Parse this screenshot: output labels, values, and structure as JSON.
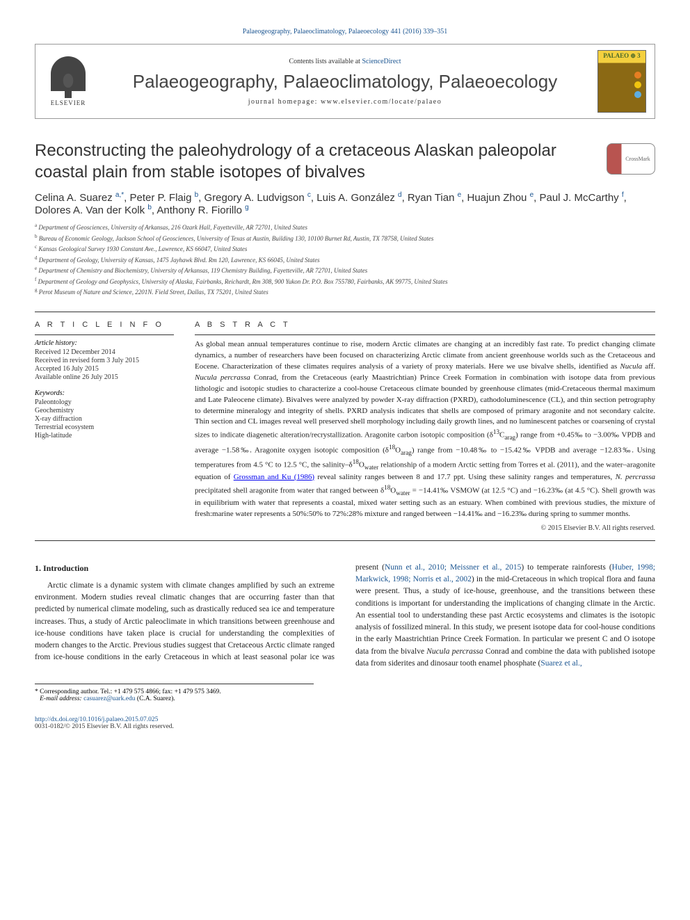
{
  "running_head": "Palaeogeography, Palaeoclimatology, Palaeoecology 441 (2016) 339–351",
  "header": {
    "publisher": "ELSEVIER",
    "contents_prefix": "Contents lists available at ",
    "contents_link": "ScienceDirect",
    "journal_title": "Palaeogeography, Palaeoclimatology, Palaeoecology",
    "homepage_label": "journal homepage: ",
    "homepage_url": "www.elsevier.com/locate/palaeo",
    "badge_text": "PALAEO ⊕ 3"
  },
  "crossmark": "CrossMark",
  "title": "Reconstructing the paleohydrology of a cretaceous Alaskan paleopolar coastal plain from stable isotopes of bivalves",
  "authors_html": "Celina A. Suarez <sup>a,*</sup>, Peter P. Flaig <sup>b</sup>, Gregory A. Ludvigson <sup>c</sup>, Luis A. González <sup>d</sup>, Ryan Tian <sup>e</sup>, Huajun Zhou <sup>e</sup>, Paul J. McCarthy <sup>f</sup>, Dolores A. Van der Kolk <sup>b</sup>, Anthony R. Fiorillo <sup>g</sup>",
  "affiliations": [
    {
      "sup": "a",
      "text": "Department of Geosciences, University of Arkansas, 216 Ozark Hall, Fayetteville, AR 72701, United States"
    },
    {
      "sup": "b",
      "text": "Bureau of Economic Geology, Jackson School of Geosciences, University of Texas at Austin, Building 130, 10100 Burnet Rd, Austin, TX 78758, United States"
    },
    {
      "sup": "c",
      "text": "Kansas Geological Survey 1930 Constant Ave., Lawrence, KS 66047, United States"
    },
    {
      "sup": "d",
      "text": "Department of Geology, University of Kansas, 1475 Jayhawk Blvd. Rm 120, Lawrence, KS 66045, United States"
    },
    {
      "sup": "e",
      "text": "Department of Chemistry and Biochemistry, University of Arkansas, 119 Chemistry Building, Fayetteville, AR 72701, United States"
    },
    {
      "sup": "f",
      "text": "Department of Geology and Geophysics, University of Alaska, Fairbanks, Reichardt, Rm 308, 900 Yukon Dr. P.O. Box 755780, Fairbanks, AK 99775, United States"
    },
    {
      "sup": "g",
      "text": "Perot Museum of Nature and Science, 2201N. Field Street, Dallas, TX 75201, United States"
    }
  ],
  "info": {
    "heading": "A R T I C L E   I N F O",
    "history_label": "Article history:",
    "history": [
      "Received 12 December 2014",
      "Received in revised form 3 July 2015",
      "Accepted 16 July 2015",
      "Available online 26 July 2015"
    ],
    "keywords_label": "Keywords:",
    "keywords": [
      "Paleontology",
      "Geochemistry",
      "X-ray diffraction",
      "Terrestrial ecosystem",
      "High-latitude"
    ]
  },
  "abstract": {
    "heading": "A B S T R A C T",
    "text": "As global mean annual temperatures continue to rise, modern Arctic climates are changing at an incredibly fast rate. To predict changing climate dynamics, a number of researchers have been focused on characterizing Arctic climate from ancient greenhouse worlds such as the Cretaceous and Eocene. Characterization of these climates requires analysis of a variety of proxy materials. Here we use bivalve shells, identified as <em>Nucula</em> aff. <em>Nucula percrassa</em> Conrad, from the Cretaceous (early Maastrichtian) Prince Creek Formation in combination with isotope data from previous lithologic and isotopic studies to characterize a cool-house Cretaceous climate bounded by greenhouse climates (mid-Cretaceous thermal maximum and Late Paleocene climate). Bivalves were analyzed by powder X-ray diffraction (PXRD), cathodoluminescence (CL), and thin section petrography to determine mineralogy and integrity of shells. PXRD analysis indicates that shells are composed of primary aragonite and not secondary calcite. Thin section and CL images reveal well preserved shell morphology including daily growth lines, and no luminescent patches or coarsening of crystal sizes to indicate diagenetic alteration/recrystallization. Aragonite carbon isotopic composition (δ<sup>13</sup>C<sub>arag</sub>) range from +0.45‰ to −3.00‰ VPDB and average −1.58‰. Aragonite oxygen isotopic composition (δ<sup>18</sup>O<sub>arag</sub>) range from −10.48‰ to −15.42‰ VPDB and average −12.83‰. Using temperatures from 4.5 °C to 12.5 °C, the salinity–δ<sup>18</sup>O<sub>water</sub> relationship of a modern Arctic setting from Torres et al. (2011), and the water–aragonite equation of <a href='#'>Grossman and Ku (1986)</a> reveal salinity ranges between 8 and 17.7 ppt. Using these salinity ranges and temperatures, <em>N. percrassa</em> precipitated shell aragonite from water that ranged between δ<sup>18</sup>O<sub>water</sub> = −14.41‰ VSMOW (at 12.5 °C) and −16.23‰ (at 4.5 °C). Shell growth was in equilibrium with water that represents a coastal, mixed water setting such as an estuary. When combined with previous studies, the mixture of fresh:marine water represents a 50%:50% to 72%:28% mixture and ranged between −14.41‰ and −16.23‰ during spring to summer months.",
    "copyright": "© 2015 Elsevier B.V. All rights reserved."
  },
  "intro": {
    "heading": "1. Introduction",
    "col1": "Arctic climate is a dynamic system with climate changes amplified by such an extreme environment. Modern studies reveal climatic changes that are occurring faster than that predicted by numerical climate modeling, such as drastically reduced sea ice and temperature increases. Thus, a study of Arctic paleoclimate in which transitions between greenhouse and ice-house conditions have taken place is crucial for understanding the complexities of modern changes to the Arctic. Previous studies suggest that Cretaceous Arctic climate ranged",
    "col2": "from ice-house conditions in the early Cretaceous in which at least seasonal polar ice was present (<a href='#'>Nunn et al., 2010; Meissner et al., 2015</a>) to temperate rainforests (<a href='#'>Huber, 1998; Markwick, 1998; Norris et al., 2002</a>) in the mid-Cretaceous in which tropical flora and fauna were present. Thus, a study of ice-house, greenhouse, and the transitions between these conditions is important for understanding the implications of changing climate in the Arctic. An essential tool to understanding these past Arctic ecosystems and climates is the isotopic analysis of fossilized mineral. In this study, we present isotope data for cool-house conditions in the early Maastrichtian Prince Creek Formation. In particular we present C and O isotope data from the bivalve <em>Nucula percrassa</em> Conrad and combine the data with published isotope data from siderites and dinosaur tooth enamel phosphate (<a href='#'>Suarez et al.,</a>"
  },
  "corresp": {
    "star": "* ",
    "line1": "Corresponding author. Tel.: +1 479 575 4866; fax: +1 479 575 3469.",
    "email_label": "E-mail address: ",
    "email": "casuarez@uark.edu",
    "email_suffix": " (C.A. Suarez)."
  },
  "footer": {
    "doi": "http://dx.doi.org/10.1016/j.palaeo.2015.07.025",
    "issn": "0031-0182/© 2015 Elsevier B.V. All rights reserved."
  },
  "colors": {
    "link": "#1a5490",
    "text": "#222222",
    "border": "#333333"
  }
}
